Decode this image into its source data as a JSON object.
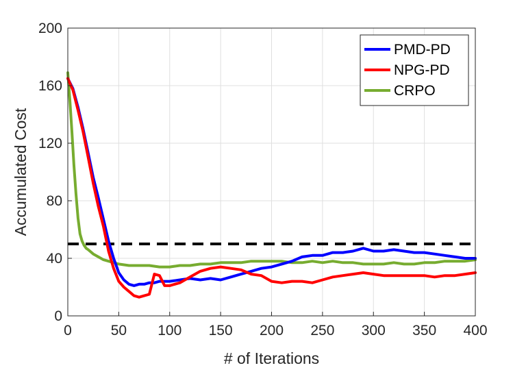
{
  "chart_data": {
    "type": "line",
    "title": "",
    "xlabel": "# of Iterations",
    "ylabel": "Accumulated Cost",
    "xlim": [
      0,
      400
    ],
    "ylim": [
      0,
      200
    ],
    "xticks": [
      0,
      50,
      100,
      150,
      200,
      250,
      300,
      350,
      400
    ],
    "yticks": [
      0,
      40,
      80,
      120,
      160,
      200
    ],
    "grid": true,
    "legend_position": "top-right",
    "threshold": {
      "y": 50,
      "color": "#000000",
      "style": "dashed"
    },
    "series": [
      {
        "name": "PMD-PD",
        "color": "#0000ff",
        "x": [
          0,
          5,
          10,
          15,
          20,
          25,
          30,
          35,
          40,
          45,
          50,
          55,
          60,
          65,
          70,
          75,
          80,
          85,
          90,
          95,
          100,
          110,
          120,
          130,
          140,
          150,
          160,
          170,
          180,
          190,
          200,
          210,
          220,
          230,
          240,
          250,
          260,
          270,
          280,
          290,
          300,
          310,
          320,
          330,
          340,
          350,
          360,
          370,
          380,
          390,
          400
        ],
        "y": [
          165,
          158,
          145,
          130,
          113,
          96,
          82,
          67,
          52,
          40,
          30,
          25,
          22,
          21,
          22,
          22,
          23,
          23,
          24,
          24,
          24,
          25,
          26,
          25,
          26,
          25,
          27,
          29,
          31,
          33,
          34,
          36,
          38,
          41,
          42,
          42,
          44,
          44,
          45,
          47,
          45,
          45,
          46,
          45,
          44,
          44,
          43,
          42,
          41,
          40,
          40
        ]
      },
      {
        "name": "NPG-PD",
        "color": "#ff0000",
        "x": [
          0,
          5,
          10,
          15,
          20,
          25,
          30,
          35,
          40,
          45,
          50,
          55,
          60,
          65,
          70,
          75,
          80,
          85,
          90,
          95,
          100,
          110,
          120,
          130,
          140,
          150,
          160,
          170,
          180,
          190,
          200,
          210,
          220,
          230,
          240,
          250,
          260,
          270,
          280,
          290,
          300,
          310,
          320,
          330,
          340,
          350,
          360,
          370,
          380,
          390,
          400
        ],
        "y": [
          165,
          157,
          143,
          128,
          110,
          92,
          76,
          62,
          45,
          33,
          24,
          20,
          17,
          14,
          13,
          14,
          15,
          29,
          28,
          21,
          21,
          23,
          27,
          31,
          33,
          34,
          33,
          32,
          29,
          28,
          24,
          23,
          24,
          24,
          23,
          25,
          27,
          28,
          29,
          30,
          29,
          28,
          28,
          28,
          28,
          28,
          27,
          28,
          28,
          29,
          30
        ]
      },
      {
        "name": "CRPO",
        "color": "#77ac30",
        "x": [
          0,
          2,
          4,
          6,
          8,
          10,
          12,
          14,
          16,
          18,
          20,
          25,
          30,
          35,
          40,
          45,
          50,
          60,
          70,
          80,
          90,
          100,
          110,
          120,
          130,
          140,
          150,
          160,
          170,
          180,
          190,
          200,
          210,
          220,
          230,
          240,
          250,
          260,
          270,
          280,
          290,
          300,
          310,
          320,
          330,
          340,
          350,
          360,
          370,
          380,
          390,
          400
        ],
        "y": [
          169,
          150,
          128,
          105,
          85,
          68,
          57,
          52,
          49,
          47,
          46,
          43,
          41,
          39,
          38,
          37,
          36,
          35,
          35,
          35,
          34,
          34,
          35,
          35,
          36,
          36,
          37,
          37,
          37,
          38,
          38,
          38,
          38,
          37,
          37,
          38,
          37,
          38,
          37,
          37,
          36,
          36,
          36,
          37,
          36,
          36,
          37,
          37,
          38,
          38,
          38,
          39
        ]
      }
    ]
  }
}
